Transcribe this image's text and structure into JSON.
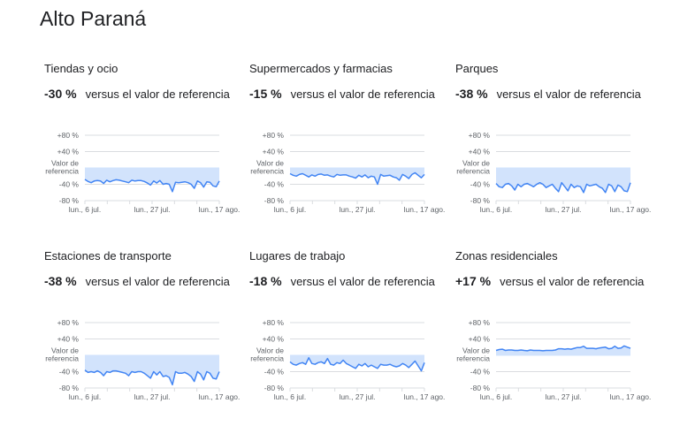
{
  "title": "Alto Paraná",
  "reference_text": "versus el valor de referencia",
  "colors": {
    "line": "#4285f4",
    "fill": "#d2e3fc",
    "grid": "#dadce0"
  },
  "chart_data": [
    {
      "type": "line",
      "title": "Tiendas y ocio",
      "change": "-30 %",
      "y_ticks": [
        "+80 %",
        "+40 %",
        "Valor de|referencia",
        "-40 %",
        "-80 %"
      ],
      "ylim": [
        -80,
        80
      ],
      "x_ticks": [
        "lun., 6 jul.",
        "lun., 27 jul.",
        "lun., 17 ago."
      ],
      "values": [
        -28,
        -33,
        -36,
        -32,
        -31,
        -32,
        -38,
        -30,
        -34,
        -31,
        -29,
        -30,
        -32,
        -34,
        -36,
        -30,
        -32,
        -31,
        -31,
        -33,
        -37,
        -42,
        -32,
        -37,
        -31,
        -40,
        -38,
        -40,
        -58,
        -35,
        -36,
        -35,
        -34,
        -36,
        -40,
        -50,
        -32,
        -36,
        -47,
        -34,
        -35,
        -44,
        -46,
        -32
      ]
    },
    {
      "type": "line",
      "title": "Supermercados y farmacias",
      "change": "-15 %",
      "y_ticks": [
        "+80 %",
        "+40 %",
        "Valor de|referencia",
        "-40 %",
        "-80 %"
      ],
      "ylim": [
        -80,
        80
      ],
      "x_ticks": [
        "lun., 6 jul.",
        "lun., 27 jul.",
        "lun., 17 ago."
      ],
      "values": [
        -14,
        -18,
        -20,
        -16,
        -14,
        -18,
        -22,
        -17,
        -20,
        -16,
        -15,
        -18,
        -17,
        -20,
        -22,
        -16,
        -18,
        -17,
        -17,
        -20,
        -22,
        -25,
        -18,
        -22,
        -17,
        -24,
        -20,
        -22,
        -40,
        -16,
        -20,
        -19,
        -18,
        -22,
        -24,
        -30,
        -16,
        -20,
        -26,
        -16,
        -12,
        -18,
        -24,
        -16
      ]
    },
    {
      "type": "line",
      "title": "Parques",
      "change": "-38 %",
      "y_ticks": [
        "+80 %",
        "+40 %",
        "Valor de|referencia",
        "-40 %",
        "-80 %"
      ],
      "ylim": [
        -80,
        80
      ],
      "x_ticks": [
        "lun., 6 jul.",
        "lun., 27 jul.",
        "lun., 17 ago."
      ],
      "values": [
        -38,
        -46,
        -48,
        -40,
        -38,
        -44,
        -54,
        -40,
        -46,
        -40,
        -38,
        -42,
        -46,
        -40,
        -36,
        -40,
        -48,
        -44,
        -40,
        -50,
        -58,
        -36,
        -46,
        -56,
        -40,
        -48,
        -44,
        -46,
        -60,
        -40,
        -44,
        -42,
        -40,
        -46,
        -50,
        -60,
        -40,
        -44,
        -58,
        -42,
        -46,
        -56,
        -58,
        -36
      ]
    },
    {
      "type": "line",
      "title": "Estaciones de transporte",
      "change": "-38 %",
      "y_ticks": [
        "+80 %",
        "+40 %",
        "Valor de|referencia",
        "-40 %",
        "-80 %"
      ],
      "ylim": [
        -80,
        80
      ],
      "x_ticks": [
        "lun., 6 jul.",
        "lun., 27 jul.",
        "lun., 17 ago."
      ],
      "values": [
        -36,
        -42,
        -40,
        -42,
        -38,
        -42,
        -50,
        -40,
        -42,
        -38,
        -38,
        -40,
        -42,
        -44,
        -50,
        -40,
        -42,
        -40,
        -40,
        -44,
        -50,
        -56,
        -40,
        -48,
        -40,
        -52,
        -50,
        -54,
        -72,
        -40,
        -44,
        -44,
        -42,
        -46,
        -52,
        -64,
        -40,
        -46,
        -60,
        -40,
        -44,
        -56,
        -58,
        -40
      ]
    },
    {
      "type": "line",
      "title": "Lugares de trabajo",
      "change": "-18 %",
      "y_ticks": [
        "+80 %",
        "+40 %",
        "Valor de|referencia",
        "-40 %",
        "-80 %"
      ],
      "ylim": [
        -80,
        80
      ],
      "x_ticks": [
        "lun., 6 jul.",
        "lun., 27 jul.",
        "lun., 17 ago."
      ],
      "values": [
        -16,
        -22,
        -24,
        -20,
        -18,
        -22,
        -6,
        -20,
        -22,
        -18,
        -16,
        -20,
        -8,
        -22,
        -24,
        -18,
        -20,
        -12,
        -20,
        -24,
        -28,
        -32,
        -22,
        -26,
        -20,
        -28,
        -24,
        -28,
        -32,
        -22,
        -24,
        -24,
        -22,
        -26,
        -28,
        -26,
        -20,
        -24,
        -30,
        -22,
        -14,
        -26,
        -38,
        -18
      ]
    },
    {
      "type": "line",
      "title": "Zonas residenciales",
      "change": "+17 %",
      "y_ticks": [
        "+80 %",
        "+40 %",
        "Valor de|referencia",
        "-40 %",
        "-80 %"
      ],
      "ylim": [
        -80,
        80
      ],
      "x_ticks": [
        "lun., 6 jul.",
        "lun., 27 jul.",
        "lun., 17 ago."
      ],
      "values": [
        12,
        14,
        15,
        12,
        13,
        13,
        12,
        12,
        13,
        12,
        11,
        13,
        12,
        12,
        12,
        11,
        12,
        12,
        12,
        13,
        16,
        16,
        15,
        16,
        15,
        17,
        19,
        19,
        22,
        17,
        17,
        17,
        16,
        18,
        19,
        20,
        16,
        17,
        22,
        17,
        18,
        23,
        20,
        17
      ]
    }
  ]
}
